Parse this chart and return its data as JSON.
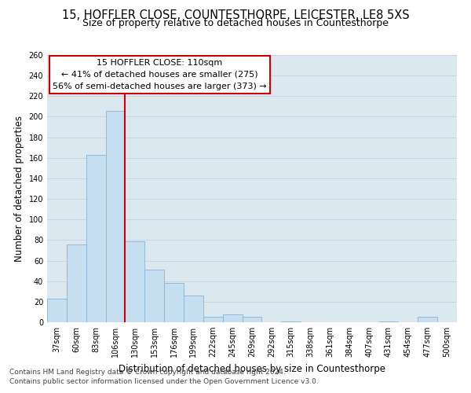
{
  "title": "15, HOFFLER CLOSE, COUNTESTHORPE, LEICESTER, LE8 5XS",
  "subtitle": "Size of property relative to detached houses in Countesthorpe",
  "xlabel": "Distribution of detached houses by size in Countesthorpe",
  "ylabel": "Number of detached properties",
  "footnote1": "Contains HM Land Registry data © Crown copyright and database right 2024.",
  "footnote2": "Contains public sector information licensed under the Open Government Licence v3.0.",
  "bar_labels": [
    "37sqm",
    "60sqm",
    "83sqm",
    "106sqm",
    "130sqm",
    "153sqm",
    "176sqm",
    "199sqm",
    "222sqm",
    "245sqm",
    "269sqm",
    "292sqm",
    "315sqm",
    "338sqm",
    "361sqm",
    "384sqm",
    "407sqm",
    "431sqm",
    "454sqm",
    "477sqm",
    "500sqm"
  ],
  "bar_values": [
    23,
    76,
    163,
    206,
    79,
    51,
    38,
    26,
    5,
    8,
    5,
    0,
    1,
    0,
    0,
    0,
    0,
    1,
    0,
    5,
    0
  ],
  "bar_color": "#c5dff0",
  "bar_edge_color": "#8ab4d4",
  "vline_color": "#cc0000",
  "vline_x_index": 4,
  "annotation_line1": "15 HOFFLER CLOSE: 110sqm",
  "annotation_line2": "← 41% of detached houses are smaller (275)",
  "annotation_line3": "56% of semi-detached houses are larger (373) →",
  "annotation_box_color": "#cc0000",
  "annotation_fill_color": "#ffffff",
  "ylim": [
    0,
    260
  ],
  "yticks": [
    0,
    20,
    40,
    60,
    80,
    100,
    120,
    140,
    160,
    180,
    200,
    220,
    240,
    260
  ],
  "grid_color": "#c8d4e0",
  "bg_color": "#dce8f0",
  "title_fontsize": 10.5,
  "subtitle_fontsize": 9,
  "axis_label_fontsize": 8.5,
  "tick_fontsize": 7,
  "annotation_fontsize": 8,
  "footnote_fontsize": 6.5
}
